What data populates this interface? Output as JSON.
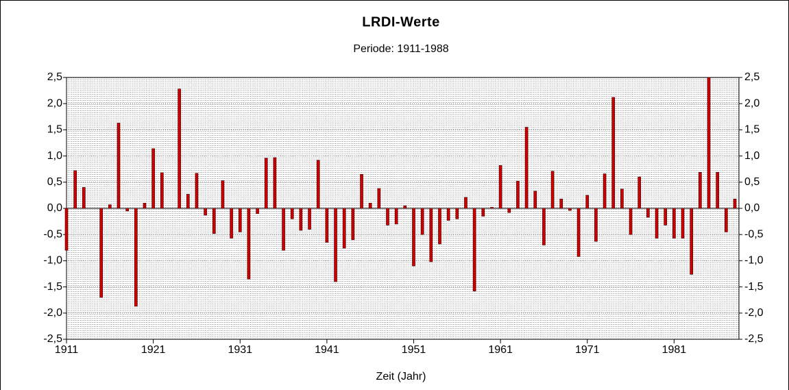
{
  "chart_data": {
    "type": "bar",
    "title": "LRDI-Werte",
    "subtitle": "Periode: 1911-1988",
    "x_label": "Zeit (Jahr)",
    "x": [
      1911,
      1912,
      1913,
      1914,
      1915,
      1916,
      1917,
      1918,
      1919,
      1920,
      1921,
      1922,
      1923,
      1924,
      1925,
      1926,
      1927,
      1928,
      1929,
      1930,
      1931,
      1932,
      1933,
      1934,
      1935,
      1936,
      1937,
      1938,
      1939,
      1940,
      1941,
      1942,
      1943,
      1944,
      1945,
      1946,
      1947,
      1948,
      1949,
      1950,
      1951,
      1952,
      1953,
      1954,
      1955,
      1956,
      1957,
      1958,
      1959,
      1960,
      1961,
      1962,
      1963,
      1964,
      1965,
      1966,
      1967,
      1968,
      1969,
      1970,
      1971,
      1972,
      1973,
      1974,
      1975,
      1976,
      1977,
      1978,
      1979,
      1980,
      1981,
      1982,
      1983,
      1984,
      1985,
      1986,
      1987,
      1988
    ],
    "values": [
      -0.8,
      0.72,
      0.4,
      0.0,
      -1.7,
      0.07,
      1.63,
      -0.05,
      -1.87,
      0.1,
      1.14,
      0.68,
      0.0,
      2.28,
      0.27,
      0.67,
      -0.13,
      -0.48,
      0.53,
      -0.57,
      -0.45,
      -1.35,
      -0.1,
      0.96,
      0.97,
      -0.8,
      -0.2,
      -0.42,
      -0.4,
      0.92,
      -0.65,
      -1.4,
      -0.76,
      -0.6,
      0.65,
      0.1,
      0.38,
      -0.32,
      -0.3,
      0.05,
      -1.1,
      -0.5,
      -1.02,
      -0.68,
      -0.23,
      -0.2,
      0.21,
      -1.58,
      -0.15,
      0.02,
      0.82,
      -0.08,
      0.52,
      1.55,
      0.33,
      -0.7,
      0.71,
      0.18,
      -0.04,
      -0.92,
      0.25,
      -0.63,
      0.66,
      2.12,
      0.37,
      -0.5,
      0.6,
      -0.17,
      -0.57,
      -0.32,
      -0.57,
      -0.57,
      -1.26,
      0.69,
      2.5,
      0.69,
      -0.45,
      0.18
    ],
    "color": "#cc0000",
    "xlim": [
      1911,
      1988
    ],
    "xticks": [
      1911,
      1921,
      1931,
      1941,
      1951,
      1961,
      1971,
      1981
    ],
    "ylim": [
      -2.5,
      2.5
    ],
    "yticks": [
      {
        "value": -2.5,
        "label": "-2,5"
      },
      {
        "value": -2.0,
        "label": "-2,0"
      },
      {
        "value": -1.5,
        "label": "-1,5"
      },
      {
        "value": -1.0,
        "label": "-1,0"
      },
      {
        "value": -0.5,
        "label": "-0,5"
      },
      {
        "value": 0.0,
        "label": "0,0"
      },
      {
        "value": 0.5,
        "label": "0,5"
      },
      {
        "value": 1.0,
        "label": "1,0"
      },
      {
        "value": 1.5,
        "label": "1,5"
      },
      {
        "value": 2.0,
        "label": "2,0"
      },
      {
        "value": 2.5,
        "label": "2,5"
      }
    ],
    "grid": true
  }
}
